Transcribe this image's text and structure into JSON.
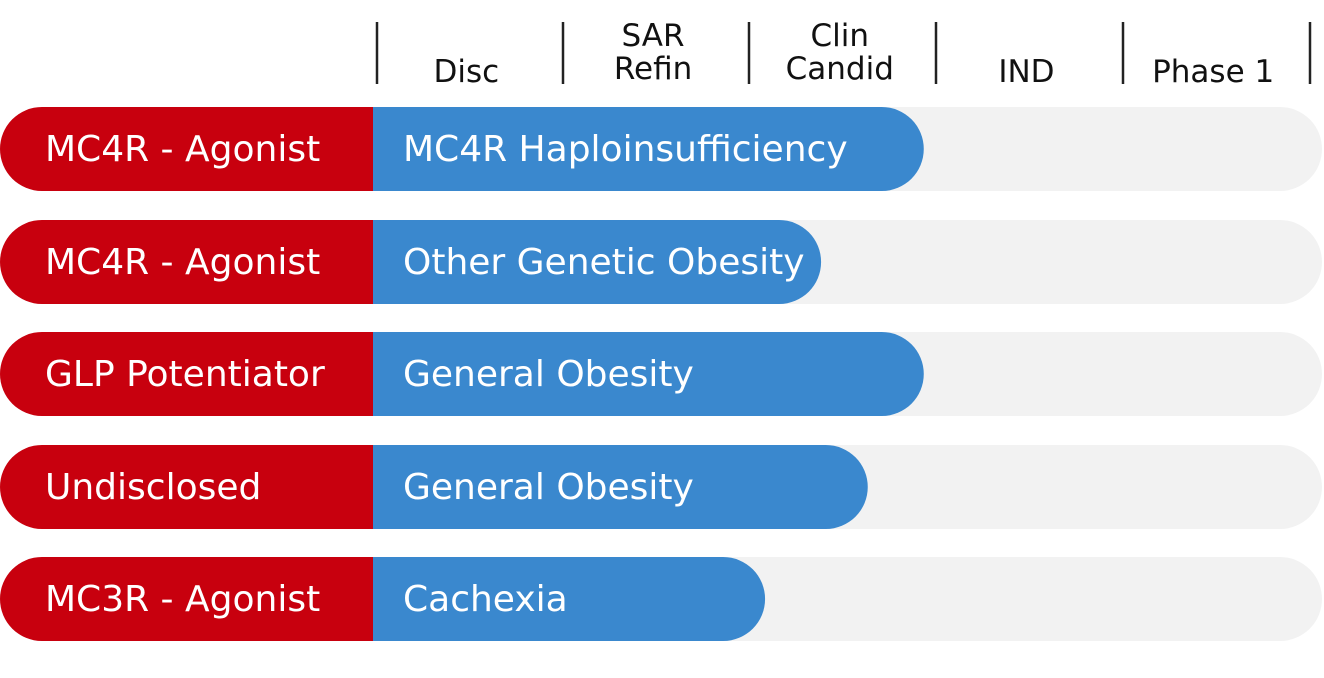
{
  "chart_data": {
    "type": "bar",
    "orientation": "horizontal",
    "stages": [
      {
        "line1": "",
        "line2": "Disc"
      },
      {
        "line1": "SAR",
        "line2": "Refin"
      },
      {
        "line1": "Clin",
        "line2": "Candid"
      },
      {
        "line1": "",
        "line2": "IND"
      },
      {
        "line1": "",
        "line2": "Phase 1"
      }
    ],
    "xlim": [
      0,
      5
    ],
    "programs": [
      {
        "target": "MC4R - Agonist",
        "indication": "MC4R Haploinsufficiency",
        "progress": 2.95
      },
      {
        "target": "MC4R - Agonist",
        "indication": "Other Genetic Obesity",
        "progress": 2.4
      },
      {
        "target": "GLP Potentiator",
        "indication": "General Obesity",
        "progress": 2.95
      },
      {
        "target": "Undisclosed",
        "indication": "General Obesity",
        "progress": 2.65
      },
      {
        "target": "MC3R - Agonist",
        "indication": "Cachexia",
        "progress": 2.1
      }
    ]
  },
  "colors": {
    "target_bar": "#C8000E",
    "progress_bar": "#3A88CE",
    "track": "#F2F2F2",
    "divider": "#222222"
  }
}
